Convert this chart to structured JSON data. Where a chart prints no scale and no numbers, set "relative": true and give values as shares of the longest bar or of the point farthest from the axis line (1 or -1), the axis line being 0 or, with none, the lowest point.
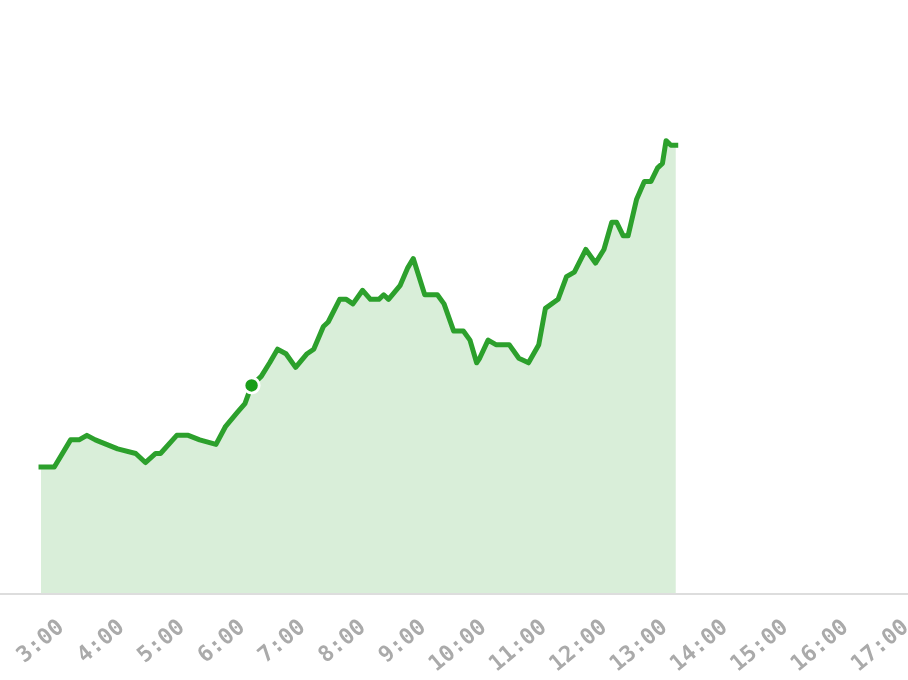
{
  "chart_data": {
    "type": "area",
    "relative": true,
    "grid": false,
    "legend": false,
    "xlim": [
      2.1,
      17.15
    ],
    "xticks": [
      {
        "value": 3,
        "label": "3:00"
      },
      {
        "value": 4,
        "label": "4:00"
      },
      {
        "value": 5,
        "label": "5:00"
      },
      {
        "value": 6,
        "label": "6:00"
      },
      {
        "value": 7,
        "label": "7:00"
      },
      {
        "value": 8,
        "label": "8:00"
      },
      {
        "value": 9,
        "label": "9:00"
      },
      {
        "value": 10,
        "label": "10:00"
      },
      {
        "value": 11,
        "label": "11:00"
      },
      {
        "value": 12,
        "label": "12:00"
      },
      {
        "value": 13,
        "label": "13:00"
      },
      {
        "value": 14,
        "label": "14:00"
      },
      {
        "value": 15,
        "label": "15:00"
      },
      {
        "value": 16,
        "label": "16:00"
      },
      {
        "value": 17,
        "label": "17:00"
      }
    ],
    "series": [
      {
        "color": "#2ca02c",
        "x": [
          2.78,
          3.0,
          3.27,
          3.41,
          3.54,
          3.68,
          4.05,
          4.35,
          4.51,
          4.68,
          4.76,
          5.03,
          5.22,
          5.41,
          5.68,
          5.84,
          6.03,
          6.16,
          6.27,
          6.43,
          6.57,
          6.7,
          6.84,
          7.0,
          7.19,
          7.3,
          7.46,
          7.54,
          7.73,
          7.84,
          7.95,
          8.11,
          8.24,
          8.38,
          8.46,
          8.54,
          8.73,
          8.86,
          8.95,
          9.14,
          9.35,
          9.46,
          9.62,
          9.78,
          9.89,
          10.0,
          10.05,
          10.19,
          10.32,
          10.54,
          10.7,
          10.86,
          11.03,
          11.14,
          11.35,
          11.49,
          11.62,
          11.81,
          11.97,
          12.11,
          12.24,
          12.32,
          12.43,
          12.51,
          12.65,
          12.78,
          12.89,
          13.0,
          13.08,
          13.14,
          13.22,
          13.3
        ],
        "values": [
          0.28,
          0.28,
          0.34,
          0.34,
          0.35,
          0.34,
          0.32,
          0.31,
          0.29,
          0.31,
          0.31,
          0.35,
          0.35,
          0.34,
          0.33,
          0.37,
          0.4,
          0.42,
          0.46,
          0.48,
          0.51,
          0.54,
          0.53,
          0.5,
          0.53,
          0.54,
          0.59,
          0.6,
          0.65,
          0.65,
          0.64,
          0.67,
          0.65,
          0.65,
          0.66,
          0.65,
          0.68,
          0.72,
          0.74,
          0.66,
          0.66,
          0.64,
          0.58,
          0.58,
          0.56,
          0.51,
          0.52,
          0.56,
          0.55,
          0.55,
          0.52,
          0.51,
          0.55,
          0.63,
          0.65,
          0.7,
          0.71,
          0.76,
          0.73,
          0.76,
          0.82,
          0.82,
          0.79,
          0.79,
          0.87,
          0.91,
          0.91,
          0.94,
          0.95,
          1.0,
          0.99,
          0.99
        ]
      },
      {
        "type": "scatter",
        "color": "#1a9e1a",
        "marker": "circle",
        "x": [
          6.27
        ],
        "values": [
          0.46
        ]
      }
    ]
  }
}
